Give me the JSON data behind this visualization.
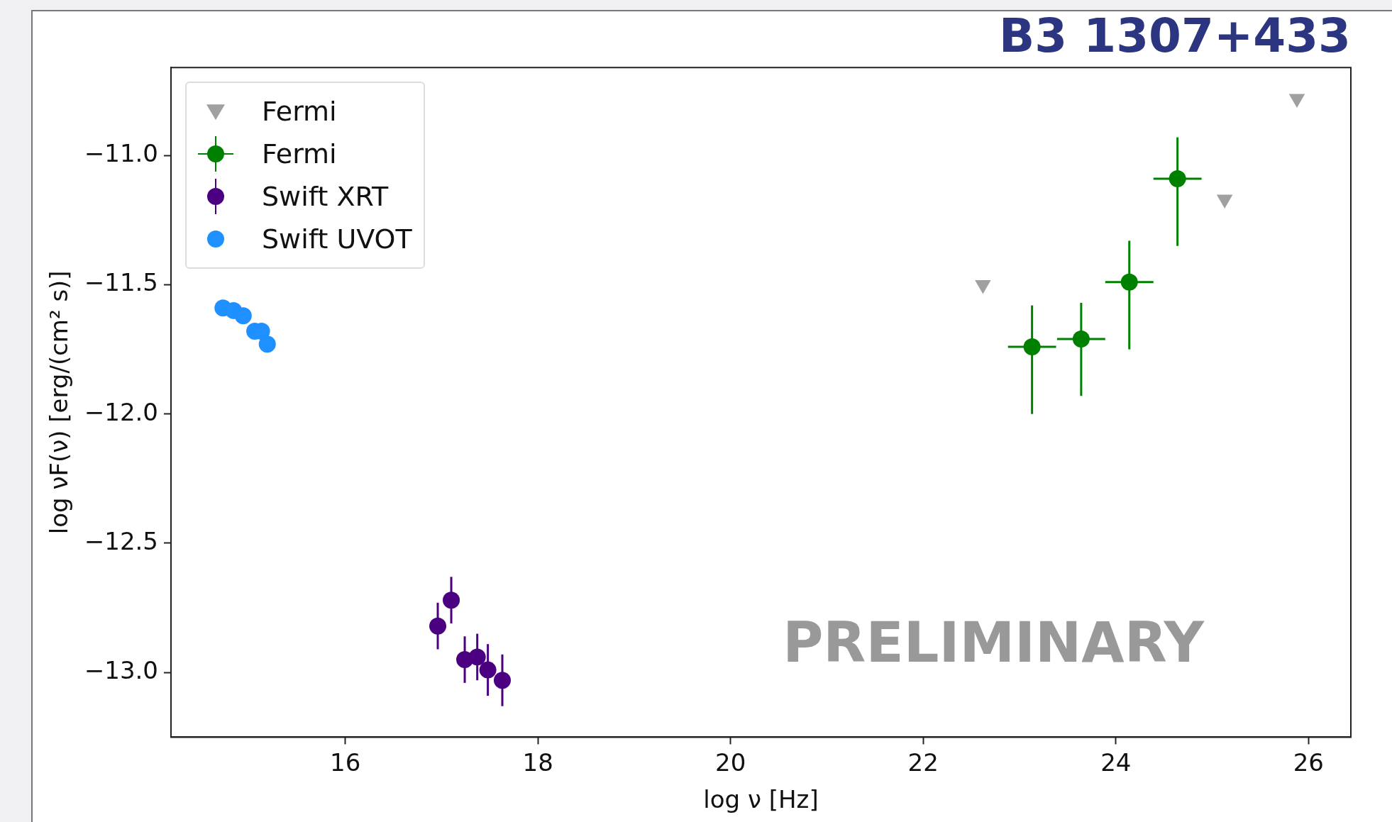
{
  "chart_data": {
    "type": "scatter",
    "title": "B3 1307+433",
    "xlabel": "log ν [Hz]",
    "ylabel": "log νF(ν) [erg/(cm² s)]",
    "xlim": [
      14.19,
      26.44
    ],
    "ylim": [
      -13.25,
      -10.66
    ],
    "xticks": [
      16,
      18,
      20,
      22,
      24,
      26
    ],
    "yticks": [
      {
        "value": -11,
        "label": "−11.0"
      },
      {
        "value": -11.5,
        "label": "−11.5"
      },
      {
        "value": -12,
        "label": "−12.0"
      },
      {
        "value": -12.5,
        "label": "−12.5"
      },
      {
        "value": -13,
        "label": "−13.0"
      }
    ],
    "grid": false,
    "legend": "top left",
    "annotations": [
      "PRELIMINARY"
    ],
    "series": [
      {
        "name": "Fermi",
        "marker": "triangle",
        "color": "#a0a0a0",
        "x": [
          22.62,
          25.13,
          25.88
        ],
        "values": [
          -11.5,
          -11.17,
          -10.78
        ]
      },
      {
        "name": "Fermi",
        "marker": "circle",
        "color": "#008000",
        "x": [
          23.13,
          23.64,
          24.14,
          24.64
        ],
        "values": [
          -11.74,
          -11.71,
          -11.49,
          -11.09
        ],
        "errors": [
          [
            -12.0,
            -11.58
          ],
          [
            -11.93,
            -11.57
          ],
          [
            -11.75,
            -11.33
          ],
          [
            -11.35,
            -10.93
          ]
        ],
        "xerrors": [
          0.25,
          0.25,
          0.25,
          0.25
        ]
      },
      {
        "name": "Swift XRT",
        "marker": "circle",
        "color": "#4b0082",
        "x": [
          16.96,
          17.1,
          17.24,
          17.37,
          17.48,
          17.63
        ],
        "values": [
          -12.82,
          -12.72,
          -12.95,
          -12.94,
          -12.99,
          -13.03
        ],
        "errors": [
          0.09,
          0.09,
          0.09,
          0.09,
          0.1,
          0.1
        ]
      },
      {
        "name": "Swift UVOT",
        "marker": "circle",
        "color": "#1e90ff",
        "x": [
          14.73,
          14.84,
          14.94,
          15.06,
          15.13,
          15.19
        ],
        "values": [
          -11.59,
          -11.6,
          -11.62,
          -11.68,
          -11.68,
          -11.73
        ]
      }
    ]
  }
}
